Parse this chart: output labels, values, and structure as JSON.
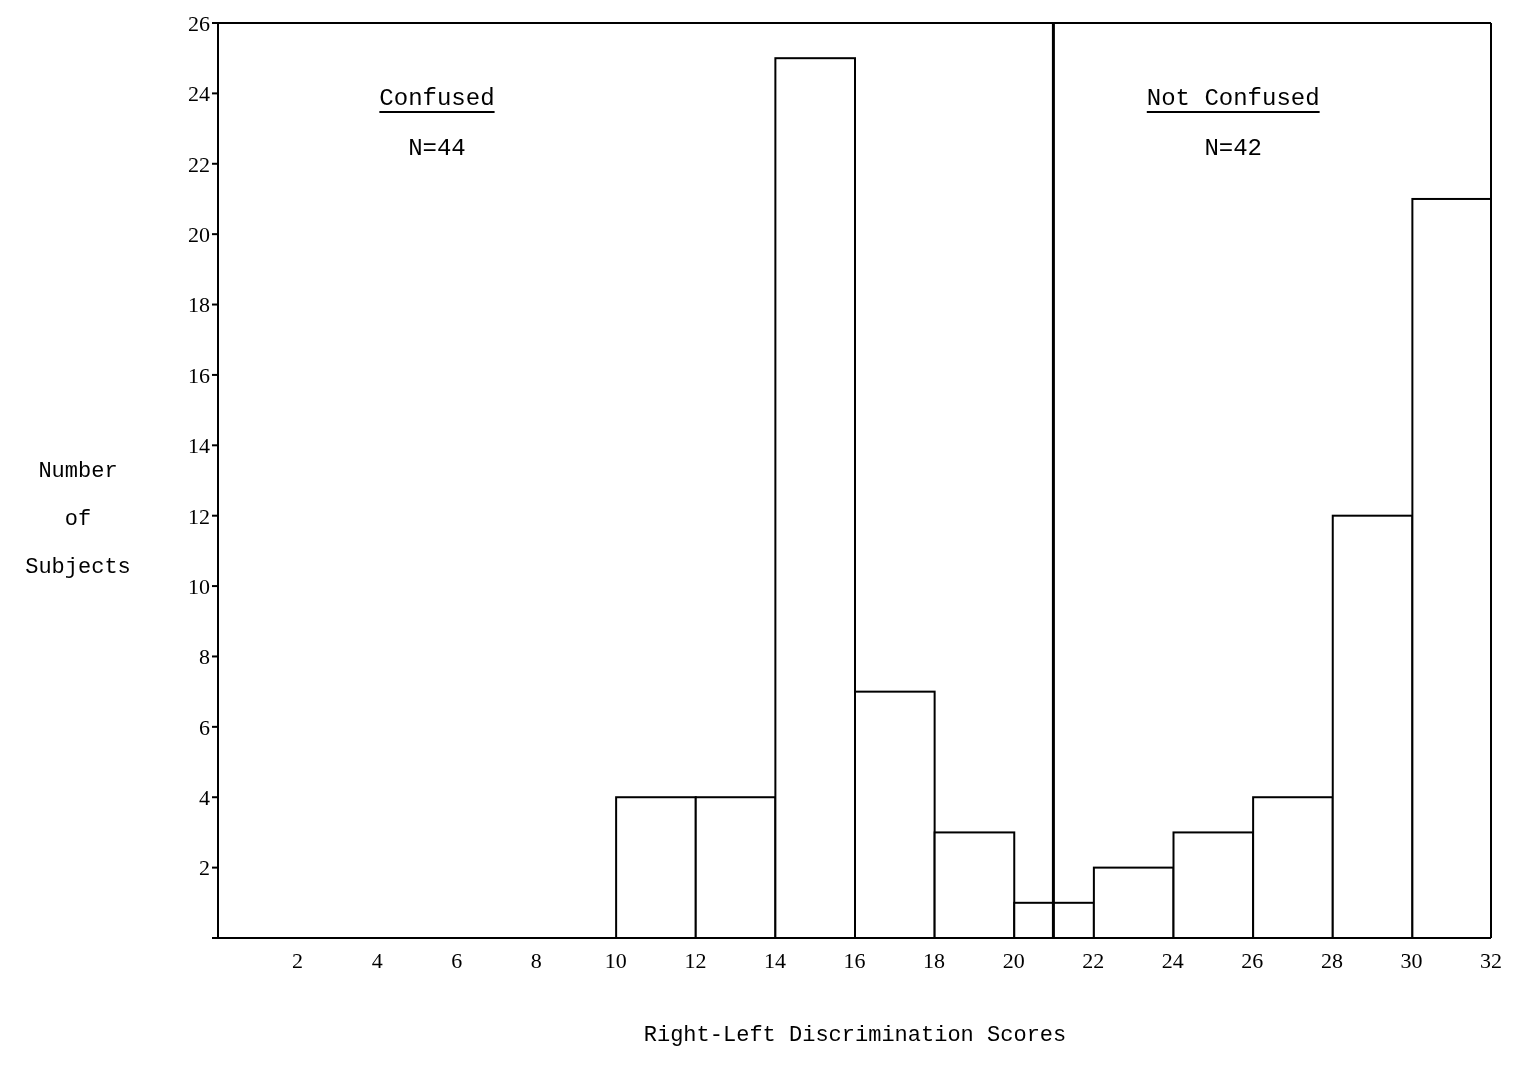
{
  "chart_data": {
    "type": "histogram",
    "xlabel": "Right-Left Discrimination Scores",
    "ylabel": "Number of Subjects",
    "bins": [
      10,
      12,
      14,
      16,
      18,
      20,
      22,
      24,
      26,
      28,
      30,
      32
    ],
    "values": [
      4,
      4,
      25,
      7,
      3,
      1,
      2,
      3,
      4,
      12,
      21
    ],
    "color": "#ffffff",
    "xlim": [
      0,
      32
    ],
    "xticks": [
      2,
      4,
      6,
      8,
      10,
      12,
      14,
      16,
      18,
      20,
      22,
      24,
      26,
      28,
      30,
      32
    ],
    "ylim": [
      0,
      26
    ],
    "yticks": [
      {
        "value": 0,
        "label": null
      },
      2,
      4,
      6,
      8,
      10,
      12,
      14,
      16,
      18,
      20,
      22,
      24,
      26
    ],
    "ref_lines": [
      {
        "axis": "x",
        "value": 21,
        "color": "#000000"
      }
    ],
    "annotations": [
      "Confused",
      "N=44",
      "Not Confused",
      "N=42"
    ],
    "grid": false,
    "legend": false
  }
}
